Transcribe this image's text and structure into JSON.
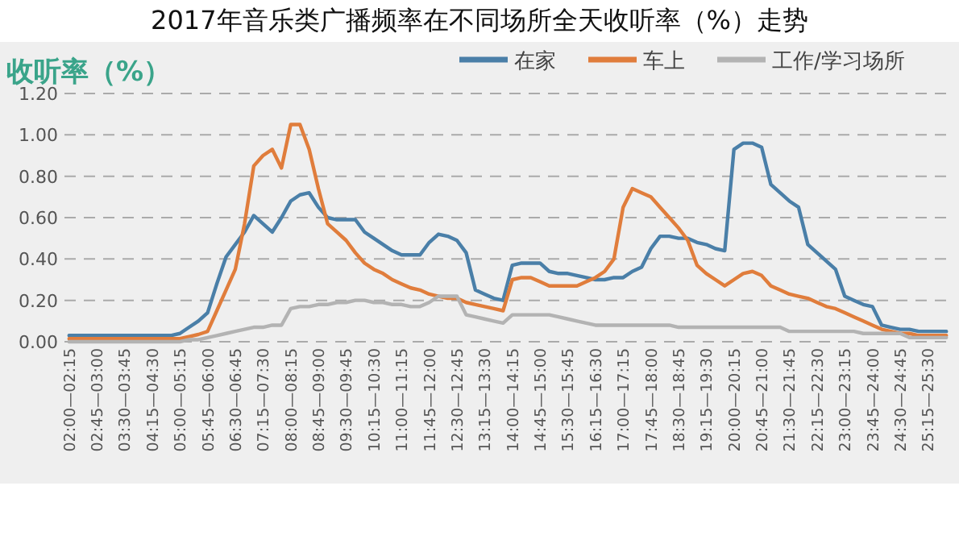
{
  "chart_data": {
    "type": "line",
    "title": "2017年音乐类广播频率在不同场所全天收听率（%）走势",
    "ylabel": "收听率（%）",
    "categories": [
      "02:00—02:15",
      null,
      null,
      "02:45—03:00",
      null,
      null,
      "03:30—03:45",
      null,
      null,
      "04:15—04:30",
      null,
      null,
      "05:00—05:15",
      null,
      null,
      "05:45—06:00",
      null,
      null,
      "06:30—06:45",
      null,
      null,
      "07:15—07:30",
      null,
      null,
      "08:00—08:15",
      null,
      null,
      "08:45—09:00",
      null,
      null,
      "09:30—09:45",
      null,
      null,
      "10:15—10:30",
      null,
      null,
      "11:00—11:15",
      null,
      null,
      "11:45—12:00",
      null,
      null,
      "12:30—12:45",
      null,
      null,
      "13:15—13:30",
      null,
      null,
      "14:00—14:15",
      null,
      null,
      "14:45—15:00",
      null,
      null,
      "15:30—15:45",
      null,
      null,
      "16:15—16:30",
      null,
      null,
      "17:00—17:15",
      null,
      null,
      "17:45—18:00",
      null,
      null,
      "18:30—18:45",
      null,
      null,
      "19:15—19:30",
      null,
      null,
      "20:00—20:15",
      null,
      null,
      "20:45—21:00",
      null,
      null,
      "21:30—21:45",
      null,
      null,
      "22:15—22:30",
      null,
      null,
      "23:00—23:15",
      null,
      null,
      "23:45—24:00",
      null,
      null,
      "24:30—24:45",
      null,
      null,
      "25:15—25:30",
      null,
      null
    ],
    "series": [
      {
        "name": "在家",
        "color": "#4a7fa8",
        "values": [
          0.03,
          0.03,
          0.03,
          0.03,
          0.03,
          0.03,
          0.03,
          0.03,
          0.03,
          0.03,
          0.03,
          0.03,
          0.04,
          0.07,
          0.1,
          0.14,
          0.28,
          0.41,
          0.47,
          0.53,
          0.61,
          0.57,
          0.53,
          0.6,
          0.68,
          0.71,
          0.72,
          0.65,
          0.6,
          0.59,
          0.59,
          0.59,
          0.53,
          0.5,
          0.47,
          0.44,
          0.42,
          0.42,
          0.42,
          0.48,
          0.52,
          0.51,
          0.49,
          0.43,
          0.25,
          0.23,
          0.21,
          0.2,
          0.37,
          0.38,
          0.38,
          0.38,
          0.34,
          0.33,
          0.33,
          0.32,
          0.31,
          0.3,
          0.3,
          0.31,
          0.31,
          0.34,
          0.36,
          0.45,
          0.51,
          0.51,
          0.5,
          0.5,
          0.48,
          0.47,
          0.45,
          0.44,
          0.93,
          0.96,
          0.96,
          0.94,
          0.76,
          0.72,
          0.68,
          0.65,
          0.47,
          0.43,
          0.39,
          0.35,
          0.22,
          0.2,
          0.18,
          0.17,
          0.08,
          0.07,
          0.06,
          0.06,
          0.05,
          0.05,
          0.05,
          0.05
        ]
      },
      {
        "name": "车上",
        "color": "#e07d3c",
        "values": [
          0.015,
          0.015,
          0.015,
          0.015,
          0.015,
          0.015,
          0.015,
          0.015,
          0.015,
          0.015,
          0.015,
          0.015,
          0.015,
          0.025,
          0.035,
          0.05,
          0.15,
          0.25,
          0.35,
          0.57,
          0.85,
          0.9,
          0.93,
          0.84,
          1.05,
          1.05,
          0.93,
          0.74,
          0.57,
          0.53,
          0.49,
          0.43,
          0.38,
          0.35,
          0.33,
          0.3,
          0.28,
          0.26,
          0.25,
          0.23,
          0.22,
          0.21,
          0.21,
          0.19,
          0.18,
          0.17,
          0.16,
          0.15,
          0.3,
          0.31,
          0.31,
          0.29,
          0.27,
          0.27,
          0.27,
          0.27,
          0.29,
          0.31,
          0.34,
          0.4,
          0.65,
          0.74,
          0.72,
          0.7,
          0.65,
          0.6,
          0.55,
          0.49,
          0.37,
          0.33,
          0.3,
          0.27,
          0.3,
          0.33,
          0.34,
          0.32,
          0.27,
          0.25,
          0.23,
          0.22,
          0.21,
          0.19,
          0.17,
          0.16,
          0.14,
          0.12,
          0.1,
          0.08,
          0.06,
          0.05,
          0.04,
          0.04,
          0.03,
          0.03,
          0.03,
          0.03
        ]
      },
      {
        "name": "工作/学习场所",
        "color": "#b3b3b3",
        "values": [
          0,
          0,
          0,
          0,
          0,
          0,
          0,
          0,
          0,
          0,
          0,
          0,
          0,
          0.01,
          0.01,
          0.02,
          0.03,
          0.04,
          0.05,
          0.06,
          0.07,
          0.07,
          0.08,
          0.08,
          0.16,
          0.17,
          0.17,
          0.18,
          0.18,
          0.19,
          0.19,
          0.2,
          0.2,
          0.19,
          0.19,
          0.18,
          0.18,
          0.17,
          0.17,
          0.19,
          0.22,
          0.22,
          0.22,
          0.13,
          0.12,
          0.11,
          0.1,
          0.09,
          0.13,
          0.13,
          0.13,
          0.13,
          0.13,
          0.12,
          0.11,
          0.1,
          0.09,
          0.08,
          0.08,
          0.08,
          0.08,
          0.08,
          0.08,
          0.08,
          0.08,
          0.08,
          0.07,
          0.07,
          0.07,
          0.07,
          0.07,
          0.07,
          0.07,
          0.07,
          0.07,
          0.07,
          0.07,
          0.07,
          0.05,
          0.05,
          0.05,
          0.05,
          0.05,
          0.05,
          0.05,
          0.05,
          0.04,
          0.04,
          0.04,
          0.04,
          0.04,
          0.02,
          0.02,
          0.02,
          0.02,
          0.02
        ]
      }
    ],
    "ylim": [
      0,
      1.2
    ],
    "yticks": [
      {
        "value": 0,
        "label": "0.00"
      },
      {
        "value": 0.2,
        "label": "0.20"
      },
      {
        "value": 0.4,
        "label": "0.40"
      },
      {
        "value": 0.6,
        "label": "0.60"
      },
      {
        "value": 0.8,
        "label": "0.80"
      },
      {
        "value": 1.0,
        "label": "1.00"
      },
      {
        "value": 1.2,
        "label": "1.20"
      }
    ],
    "grid": "y",
    "legend": "top right"
  }
}
